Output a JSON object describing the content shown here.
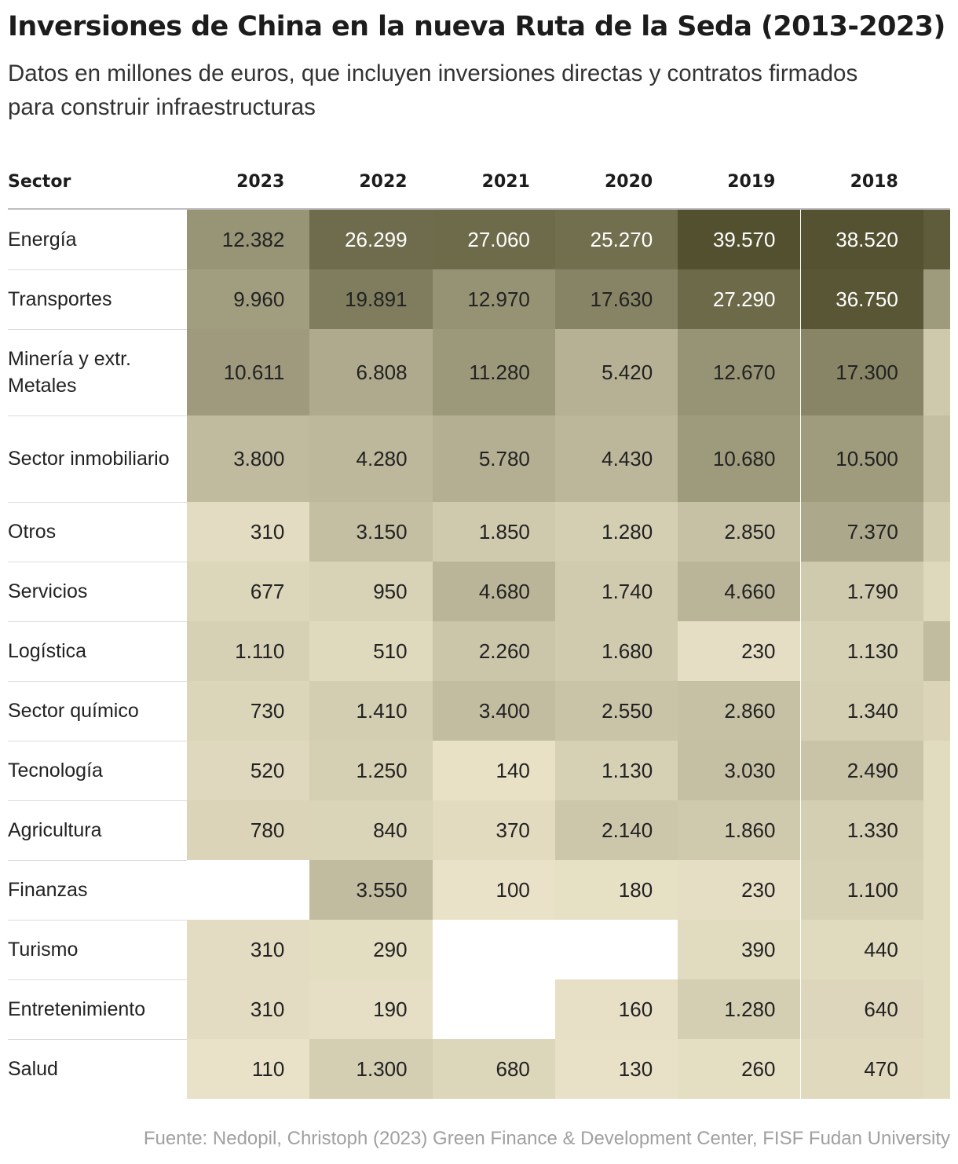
{
  "header": {
    "title": "Inversiones de China en la nueva Ruta de la Seda (2013-2023)",
    "subtitle": "Datos en millones de euros, que incluyen inversiones directas y contratos firmados para construir infraestructuras"
  },
  "chart_data": {
    "type": "heatmap",
    "title": "Inversiones de China en la nueva Ruta de la Seda (2013-2023)",
    "subtitle": "Datos en millones de euros, que incluyen inversiones directas y contratos firmados para construir infraestructuras",
    "row_header": "Sector",
    "columns": [
      "2023",
      "2022",
      "2021",
      "2020",
      "2019",
      "2018"
    ],
    "rows": [
      {
        "label": "Energía",
        "values": [
          12382,
          26299,
          27060,
          25270,
          39570,
          38520
        ]
      },
      {
        "label": "Transportes",
        "values": [
          9960,
          19891,
          12970,
          17630,
          27290,
          36750
        ]
      },
      {
        "label": "Minería y extr. Metales",
        "values": [
          10611,
          6808,
          11280,
          5420,
          12670,
          17300
        ]
      },
      {
        "label": "Sector inmobiliario",
        "values": [
          3800,
          4280,
          5780,
          4430,
          10680,
          10500
        ]
      },
      {
        "label": "Otros",
        "values": [
          310,
          3150,
          1850,
          1280,
          2850,
          7370
        ]
      },
      {
        "label": "Servicios",
        "values": [
          677,
          950,
          4680,
          1740,
          4660,
          1790
        ]
      },
      {
        "label": "Logística",
        "values": [
          1110,
          510,
          2260,
          1680,
          230,
          1130
        ]
      },
      {
        "label": "Sector químico",
        "values": [
          730,
          1410,
          3400,
          2550,
          2860,
          1340
        ]
      },
      {
        "label": "Tecnología",
        "values": [
          520,
          1250,
          140,
          1130,
          3030,
          2490
        ]
      },
      {
        "label": "Agricultura",
        "values": [
          780,
          840,
          370,
          2140,
          1860,
          1330
        ]
      },
      {
        "label": "Finanzas",
        "values": [
          null,
          3550,
          100,
          180,
          230,
          1100
        ]
      },
      {
        "label": "Turismo",
        "values": [
          310,
          290,
          null,
          null,
          390,
          440
        ]
      },
      {
        "label": "Entretenimiento",
        "values": [
          310,
          190,
          null,
          160,
          1280,
          640
        ]
      },
      {
        "label": "Salud",
        "values": [
          110,
          1300,
          680,
          130,
          260,
          470
        ]
      }
    ],
    "partial_column": {
      "level": [
        0.92,
        0.52,
        0.22,
        0.28,
        0.2,
        0.12,
        0.3,
        0.14,
        0.1,
        0.1,
        0.1,
        0.1,
        0.1,
        0.1
      ]
    },
    "number_format": {
      "thousands_separator": "."
    },
    "color_scale": {
      "low": "#f1ead0",
      "high": "#52502f",
      "text_light": "#ffffff",
      "text_dark": "#222222"
    },
    "source": "Fuente: Nedopil, Christoph (2023) Green Finance & Development Center, FISF Fudan University"
  }
}
